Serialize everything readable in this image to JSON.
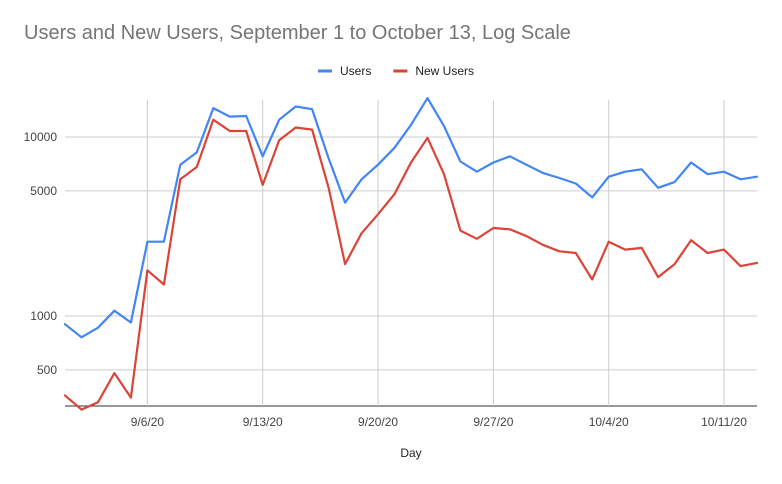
{
  "chart_data": {
    "type": "line",
    "title": "Users and New Users, September 1 to October 13, Log Scale",
    "xlabel": "Day",
    "ylabel": "",
    "yscale": "log",
    "ylim": [
      300,
      18000
    ],
    "y_ticks": [
      500,
      1000,
      5000,
      10000
    ],
    "y_tick_labels": [
      "500",
      "1000",
      "5000",
      "10000"
    ],
    "x_ticks": [
      "9/6/20",
      "9/13/20",
      "9/20/20",
      "9/27/20",
      "10/4/20",
      "10/11/20"
    ],
    "grid": true,
    "legend_position": "top",
    "x": [
      "9/1/20",
      "9/2/20",
      "9/3/20",
      "9/4/20",
      "9/5/20",
      "9/6/20",
      "9/7/20",
      "9/8/20",
      "9/9/20",
      "9/10/20",
      "9/11/20",
      "9/12/20",
      "9/13/20",
      "9/14/20",
      "9/15/20",
      "9/16/20",
      "9/17/20",
      "9/18/20",
      "9/19/20",
      "9/20/20",
      "9/21/20",
      "9/22/20",
      "9/23/20",
      "9/24/20",
      "9/25/20",
      "9/26/20",
      "9/27/20",
      "9/28/20",
      "9/29/20",
      "9/30/20",
      "10/1/20",
      "10/2/20",
      "10/3/20",
      "10/4/20",
      "10/5/20",
      "10/6/20",
      "10/7/20",
      "10/8/20",
      "10/9/20",
      "10/10/20",
      "10/11/20",
      "10/12/20",
      "10/13/20"
    ],
    "series": [
      {
        "name": "Users",
        "color": "#4285f4",
        "values": [
          900,
          760,
          860,
          1070,
          920,
          2600,
          2600,
          7000,
          8200,
          14500,
          13000,
          13100,
          7800,
          12500,
          14800,
          14300,
          7600,
          4300,
          5800,
          7000,
          8700,
          11700,
          16500,
          11500,
          7300,
          6400,
          7200,
          7800,
          7000,
          6300,
          5900,
          5500,
          4600,
          6000,
          6400,
          6600,
          5200,
          5600,
          7200,
          6200,
          6400,
          5800,
          6000
        ]
      },
      {
        "name": "New Users",
        "color": "#db4437",
        "values": [
          360,
          300,
          330,
          480,
          350,
          1800,
          1500,
          5800,
          6800,
          12500,
          10800,
          10800,
          5400,
          9600,
          11300,
          11000,
          5200,
          1950,
          2900,
          3700,
          4800,
          7200,
          9900,
          6200,
          3000,
          2700,
          3100,
          3050,
          2800,
          2500,
          2300,
          2250,
          1600,
          2600,
          2350,
          2400,
          1650,
          1950,
          2650,
          2250,
          2350,
          1900,
          1980
        ]
      }
    ]
  }
}
